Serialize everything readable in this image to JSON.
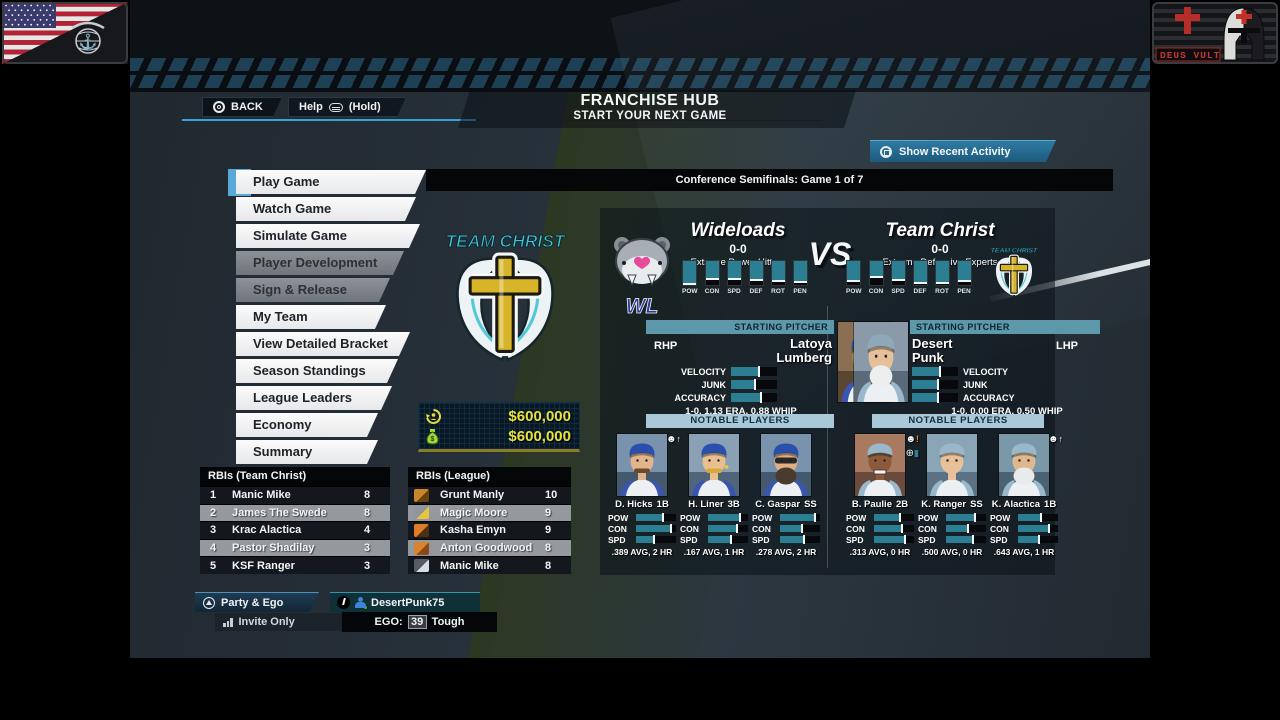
{
  "patches": {
    "right_text": "DEUS VULT"
  },
  "header": {
    "back_label": "BACK",
    "help_label": "Help",
    "help_suffix": "(Hold)",
    "title": "FRANCHISE HUB",
    "subtitle": "START YOUR NEXT GAME",
    "recent_label": "Show Recent Activity"
  },
  "series_banner": "Conference Semifinals: Game 1 of 7",
  "menu": {
    "items": [
      {
        "label": "Play Game",
        "state": "selected"
      },
      {
        "label": "Watch Game",
        "state": "enabled"
      },
      {
        "label": "Simulate Game",
        "state": "enabled"
      },
      {
        "label": "Player Development",
        "state": "disabled"
      },
      {
        "label": "Sign & Release",
        "state": "disabled"
      },
      {
        "label": "My Team",
        "state": "enabled"
      },
      {
        "label": "View Detailed Bracket",
        "state": "enabled"
      },
      {
        "label": "Season Standings",
        "state": "enabled"
      },
      {
        "label": "League Leaders",
        "state": "enabled"
      },
      {
        "label": "Economy",
        "state": "enabled"
      },
      {
        "label": "Summary",
        "state": "enabled"
      }
    ]
  },
  "team_logo": {
    "text": "TEAM CHRIST",
    "cross_color": "#d8b428",
    "text_color": "#3ec8dc"
  },
  "economy": {
    "accent": "#e8e33c",
    "rows": [
      {
        "icon": "budget-cycle-icon",
        "value": "$600,000"
      },
      {
        "icon": "money-bag-icon",
        "value": "$600,000"
      }
    ]
  },
  "rbi_team": {
    "title": "RBIs (Team Christ)",
    "rows": [
      {
        "rank": "1",
        "name": "Manic Mike",
        "value": "8"
      },
      {
        "rank": "2",
        "name": "James The Swede",
        "value": "8"
      },
      {
        "rank": "3",
        "name": "Krac Alactica",
        "value": "4"
      },
      {
        "rank": "4",
        "name": "Pastor Shadilay",
        "value": "3"
      },
      {
        "rank": "5",
        "name": "KSF Ranger",
        "value": "3"
      }
    ]
  },
  "rbi_league": {
    "title": "RBIs (League)",
    "rows": [
      {
        "icon_colors": [
          "#c8872a",
          "#6a4210"
        ],
        "name": "Grunt Manly",
        "value": "10"
      },
      {
        "icon_colors": [
          "#8f959c",
          "#e8c53c"
        ],
        "name": "Magic Moore",
        "value": "9"
      },
      {
        "icon_colors": [
          "#e07b28",
          "#4a3210"
        ],
        "name": "Kasha Emyn",
        "value": "9"
      },
      {
        "icon_colors": [
          "#d8852e",
          "#8a4a18"
        ],
        "name": "Anton Goodwood",
        "value": "8"
      },
      {
        "icon_colors": [
          "#565c64",
          "#d8dde2"
        ],
        "name": "Manic Mike",
        "value": "8"
      }
    ]
  },
  "matchup": {
    "vs_label": "VS",
    "starting_pitcher_label": "STARTING PITCHER",
    "notable_label": "NOTABLE PLAYERS",
    "stat_labels": [
      "POW",
      "CON",
      "SPD",
      "DEF",
      "ROT",
      "PEN"
    ],
    "player_stat_labels": [
      "POW",
      "CON",
      "SPD"
    ],
    "away": {
      "name": "Wideloads",
      "record": "0-0",
      "trait": "Extreme Power Hitters",
      "logo_text": "WL",
      "stats": [
        92,
        70,
        72,
        74,
        80,
        82
      ]
    },
    "home": {
      "name": "Team Christ",
      "record": "0-0",
      "trait": "Extreme Defensive Experts",
      "stats": [
        80,
        62,
        74,
        86,
        86,
        78
      ]
    },
    "away_pitcher": {
      "hand": "RHP",
      "name_lines": [
        "Latoya",
        "Lumberg"
      ],
      "bars": [
        {
          "label": "VELOCITY",
          "value": 58
        },
        {
          "label": "JUNK",
          "value": 50
        },
        {
          "label": "ACCURACY",
          "value": 64
        }
      ],
      "statline": "1-0, 1.13 ERA, 0.88 WHIP",
      "avatar": {
        "skin": "#c99a72",
        "cap": "#2a4fae",
        "sleeve": "#3a55b0",
        "bg": [
          "#8a6f52",
          "#5a4632"
        ]
      }
    },
    "home_pitcher": {
      "hand": "LHP",
      "name_lines": [
        "Desert",
        "Punk"
      ],
      "bars": [
        {
          "label": "VELOCITY",
          "value": 58
        },
        {
          "label": "JUNK",
          "value": 55
        },
        {
          "label": "ACCURACY",
          "value": 55
        }
      ],
      "statline": "1-0, 0.00 ERA, 0.50 WHIP",
      "avatar": {
        "skin": "#e6c09a",
        "cap": "#8fa8b8",
        "sleeve": "#9ab8cc",
        "beard": "#eceef0",
        "bg": [
          "#8a9aa8",
          "#5a6a78"
        ]
      }
    },
    "away_players": [
      {
        "name": "D. Hicks",
        "pos": "1B",
        "stats": [
          66,
          86,
          42
        ],
        "statline": ".389 AVG, 2 HR",
        "badges": [
          "mood-up"
        ],
        "avatar": {
          "skin": "#e2b48c",
          "cap": "#2a4fae",
          "sleeve": "#3a55b0",
          "mustache": "#6a4a2a",
          "bg": [
            "#7a93ad",
            "#45596e"
          ]
        }
      },
      {
        "name": "H. Liner",
        "pos": "3B",
        "stats": [
          78,
          70,
          54
        ],
        "statline": ".167 AVG, 1 HR",
        "badges": [],
        "avatar": {
          "skin": "#e8c090",
          "cap": "#2a4fae",
          "sleeve": "#3a55b0",
          "mustache": "#d8a83c",
          "earring": "#e8c53c",
          "bg": [
            "#8aa0b5",
            "#50657a"
          ]
        }
      },
      {
        "name": "C. Gaspar",
        "pos": "SS",
        "stats": [
          84,
          52,
          58
        ],
        "statline": ".278 AVG, 2 HR",
        "badges": [],
        "avatar": {
          "skin": "#dfae84",
          "cap": "#2a4fae",
          "sleeve": "#3a55b0",
          "beard": "#4a3a30",
          "glasses": true,
          "bg": [
            "#7a93ad",
            "#45596e"
          ]
        }
      }
    ],
    "home_players": [
      {
        "name": "B. Paulie",
        "pos": "2B",
        "stats": [
          62,
          68,
          76
        ],
        "statline": ".313 AVG, 0 HR",
        "badges": [
          "mood-alert",
          "training-up"
        ],
        "avatar": {
          "skin": "#8a5a3a",
          "cap": "#9ab8cc",
          "sleeve": "#9ab8cc",
          "grin": true,
          "bg": [
            "#a87a62",
            "#6a4a3a"
          ]
        }
      },
      {
        "name": "K. Ranger",
        "pos": "SS",
        "stats": [
          70,
          52,
          64
        ],
        "statline": ".500 AVG, 0 HR",
        "badges": [],
        "avatar": {
          "skin": "#e8c09a",
          "cap": "#9ab8cc",
          "sleeve": "#9ab8cc",
          "bg": [
            "#8aa5b5",
            "#5a7283"
          ]
        }
      },
      {
        "name": "K. Alactica",
        "pos": "1B",
        "stats": [
          56,
          74,
          50
        ],
        "statline": ".643 AVG, 1 HR",
        "badges": [
          "mood-up"
        ],
        "avatar": {
          "skin": "#e0b890",
          "cap": "#9ab8cc",
          "sleeve": "#9ab8cc",
          "beard": "#e8eaec",
          "bg": [
            "#7a98a8",
            "#4a6272"
          ]
        }
      }
    ]
  },
  "footer": {
    "party_label": "Party & Ego",
    "invite_label": "Invite Only",
    "username": "DesertPunk75",
    "ego_label": "EGO:",
    "ego_value": "39",
    "ego_trait": "Tough"
  }
}
